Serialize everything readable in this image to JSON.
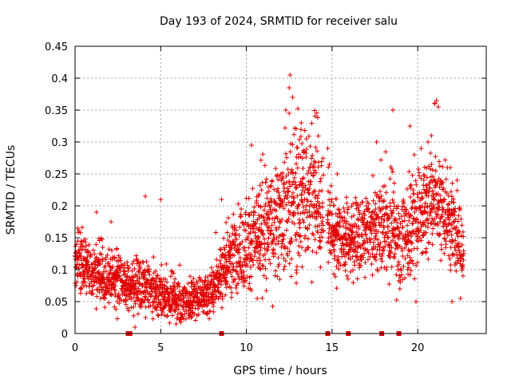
{
  "chart_data": {
    "type": "scatter",
    "title": "Day 193 of 2024, SRMTID for receiver salu",
    "xlabel": "GPS time / hours",
    "ylabel": "SRMTID / TECUs",
    "xlim": [
      0,
      24
    ],
    "ylim": [
      0,
      0.45
    ],
    "grid": true,
    "x_ticks": [
      0,
      5,
      10,
      15,
      20
    ],
    "x_tick_labels": [
      "0",
      "5",
      "10",
      "15",
      "20"
    ],
    "y_ticks": [
      0,
      0.05,
      0.1,
      0.15,
      0.2,
      0.25,
      0.3,
      0.35,
      0.4,
      0.45
    ],
    "y_tick_labels": [
      "0",
      "0.05",
      "0.1",
      "0.15",
      "0.2",
      "0.25",
      "0.3",
      "0.35",
      "0.4",
      "0.45"
    ],
    "marker": "+",
    "color": "#e00000",
    "gap_markers_x": [
      3.1,
      3.2,
      8.55,
      14.75,
      15.95,
      17.9,
      18.9
    ],
    "trend_profile": [
      [
        0.0,
        0.12,
        0.025
      ],
      [
        0.5,
        0.11,
        0.025
      ],
      [
        1.0,
        0.095,
        0.025
      ],
      [
        1.5,
        0.09,
        0.025
      ],
      [
        2.0,
        0.085,
        0.025
      ],
      [
        2.5,
        0.09,
        0.03
      ],
      [
        3.0,
        0.075,
        0.02
      ],
      [
        3.5,
        0.075,
        0.025
      ],
      [
        4.0,
        0.07,
        0.025
      ],
      [
        4.5,
        0.065,
        0.025
      ],
      [
        5.0,
        0.06,
        0.02
      ],
      [
        5.5,
        0.055,
        0.02
      ],
      [
        6.0,
        0.05,
        0.02
      ],
      [
        6.5,
        0.05,
        0.02
      ],
      [
        7.0,
        0.055,
        0.02
      ],
      [
        7.5,
        0.06,
        0.02
      ],
      [
        8.0,
        0.065,
        0.025
      ],
      [
        8.5,
        0.09,
        0.03
      ],
      [
        9.0,
        0.12,
        0.035
      ],
      [
        9.5,
        0.13,
        0.04
      ],
      [
        10.0,
        0.14,
        0.045
      ],
      [
        10.5,
        0.15,
        0.045
      ],
      [
        11.0,
        0.16,
        0.05
      ],
      [
        11.5,
        0.17,
        0.05
      ],
      [
        12.0,
        0.18,
        0.055
      ],
      [
        12.5,
        0.2,
        0.06
      ],
      [
        13.0,
        0.21,
        0.065
      ],
      [
        13.5,
        0.22,
        0.065
      ],
      [
        14.0,
        0.21,
        0.06
      ],
      [
        14.5,
        0.2,
        0.05
      ],
      [
        15.0,
        0.16,
        0.04
      ],
      [
        15.5,
        0.15,
        0.035
      ],
      [
        16.0,
        0.15,
        0.035
      ],
      [
        16.5,
        0.145,
        0.035
      ],
      [
        17.0,
        0.15,
        0.035
      ],
      [
        17.5,
        0.16,
        0.04
      ],
      [
        18.0,
        0.17,
        0.045
      ],
      [
        18.5,
        0.16,
        0.045
      ],
      [
        19.0,
        0.15,
        0.05
      ],
      [
        19.5,
        0.16,
        0.05
      ],
      [
        20.0,
        0.18,
        0.05
      ],
      [
        20.5,
        0.2,
        0.05
      ],
      [
        21.0,
        0.21,
        0.05
      ],
      [
        21.5,
        0.19,
        0.045
      ],
      [
        22.0,
        0.17,
        0.04
      ],
      [
        22.5,
        0.15,
        0.035
      ],
      [
        22.7,
        0.13,
        0.03
      ]
    ],
    "outliers": [
      [
        0.15,
        0.165
      ],
      [
        1.25,
        0.19
      ],
      [
        2.1,
        0.175
      ],
      [
        4.1,
        0.215
      ],
      [
        5.0,
        0.21
      ],
      [
        8.55,
        0.21
      ],
      [
        9.7,
        0.195
      ],
      [
        10.3,
        0.295
      ],
      [
        12.3,
        0.35
      ],
      [
        12.5,
        0.345
      ],
      [
        12.5,
        0.385
      ],
      [
        12.55,
        0.405
      ],
      [
        12.7,
        0.37
      ],
      [
        13.2,
        0.33
      ],
      [
        13.5,
        0.305
      ],
      [
        13.7,
        0.26
      ],
      [
        14.75,
        0.29
      ],
      [
        14.85,
        0.265
      ],
      [
        15.3,
        0.25
      ],
      [
        17.0,
        0.2
      ],
      [
        17.6,
        0.3
      ],
      [
        18.55,
        0.35
      ],
      [
        19.55,
        0.325
      ],
      [
        19.8,
        0.28
      ],
      [
        20.6,
        0.3
      ],
      [
        21.0,
        0.36
      ],
      [
        21.1,
        0.365
      ],
      [
        21.2,
        0.355
      ],
      [
        20.8,
        0.31
      ],
      [
        20.2,
        0.29
      ],
      [
        21.9,
        0.26
      ],
      [
        22.3,
        0.24
      ],
      [
        22.5,
        0.055
      ],
      [
        22.0,
        0.05
      ],
      [
        19.9,
        0.05
      ],
      [
        3.5,
        0.01
      ],
      [
        5.9,
        0.015
      ]
    ]
  }
}
